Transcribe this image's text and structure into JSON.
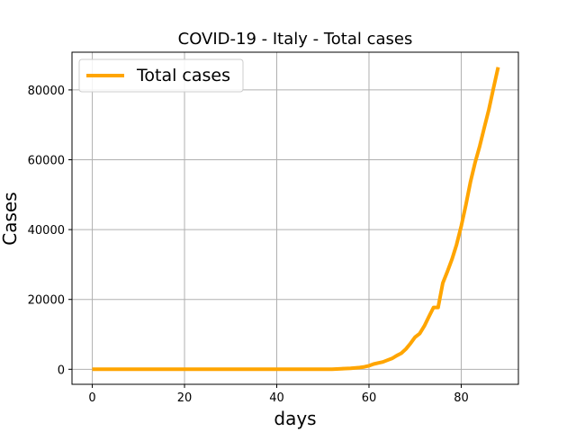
{
  "chart_data": {
    "type": "line",
    "title": "COVID-19 - Italy - Total cases",
    "xlabel": "days",
    "ylabel": "Cases",
    "xlim": [
      -4.4,
      92.4
    ],
    "ylim": [
      -4300,
      90800
    ],
    "xticks": [
      0,
      20,
      40,
      60,
      80
    ],
    "yticks": [
      0,
      20000,
      40000,
      60000,
      80000
    ],
    "grid": true,
    "legend_position": "top-left",
    "series": [
      {
        "name": "Total cases",
        "color": "#ffa500",
        "x": [
          0,
          52,
          54,
          56,
          58,
          59,
          60,
          61,
          62,
          63,
          64,
          65,
          66,
          67,
          68,
          69,
          70,
          71,
          72,
          73,
          74,
          75,
          76,
          77,
          78,
          79,
          80,
          81,
          82,
          83,
          84,
          85,
          86,
          87,
          88
        ],
        "y": [
          0,
          0,
          150,
          300,
          500,
          700,
          1000,
          1500,
          1800,
          2100,
          2600,
          3100,
          3900,
          4600,
          5800,
          7400,
          9200,
          10200,
          12400,
          15100,
          17700,
          17700,
          24700,
          28000,
          31500,
          35700,
          41000,
          47000,
          53600,
          59100,
          63900,
          69200,
          74400,
          80500,
          86500
        ]
      }
    ]
  }
}
